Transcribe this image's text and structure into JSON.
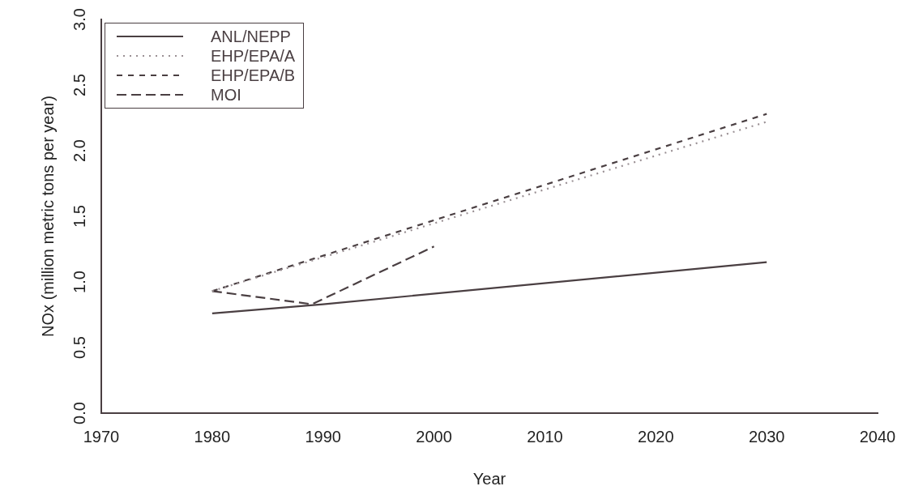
{
  "chart_data": {
    "type": "line",
    "xlabel": "Year",
    "ylabel": "NOx (million metric tons per year)",
    "xlim": [
      1970,
      2040
    ],
    "xticks": [
      1970,
      1980,
      1990,
      2000,
      2010,
      2020,
      2030,
      2040
    ],
    "ylim": [
      0,
      3
    ],
    "yticks": [
      {
        "value": 0,
        "label": "0.0"
      },
      {
        "value": 0.5,
        "label": "0.5"
      },
      {
        "value": 1,
        "label": "1.0"
      },
      {
        "value": 1.5,
        "label": "1.5"
      },
      {
        "value": 2,
        "label": "2.0"
      },
      {
        "value": 2.5,
        "label": "2.5"
      },
      {
        "value": 3,
        "label": "3.0"
      }
    ],
    "grid": false,
    "legend": "top left",
    "marker": "none",
    "series": [
      {
        "name": "ANL/NEPP",
        "color": "#4a3f42",
        "line_style": "solid",
        "x": [
          1980,
          1990,
          2030
        ],
        "values": [
          0.76,
          0.83,
          1.15
        ]
      },
      {
        "name": "EHP/EPA/A",
        "color": "#9a9094",
        "line_style": "dotted",
        "x": [
          1980,
          2030
        ],
        "values": [
          0.93,
          2.22
        ]
      },
      {
        "name": "EHP/EPA/B",
        "color": "#4a3f42",
        "line_style": "dashed",
        "x": [
          1980,
          2030
        ],
        "values": [
          0.93,
          2.28
        ]
      },
      {
        "name": "MOI",
        "color": "#4a3f42",
        "line_style": "longdash",
        "x": [
          1980,
          1989,
          2000
        ],
        "values": [
          0.93,
          0.83,
          1.27
        ]
      }
    ]
  }
}
